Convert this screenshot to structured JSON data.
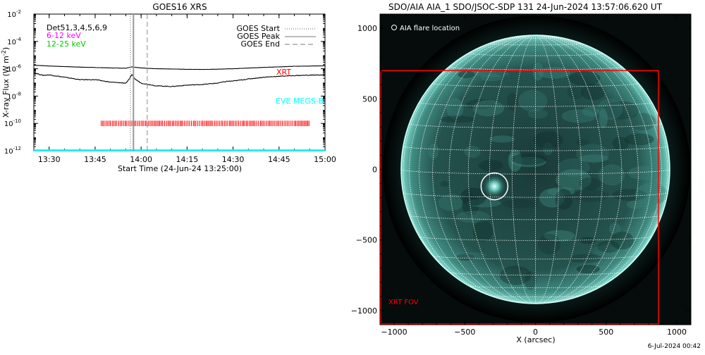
{
  "footer_timestamp": "6-Jul-2024 00:42",
  "chart_data": [
    {
      "type": "line",
      "title": "GOES16 XRS",
      "xlabel": "Start Time (24-Jun-24 13:25:00)",
      "ylabel": "X-ray Flux (W m",
      "ylabel_sup": "-2",
      "ylabel_close": ")",
      "xlim_minutes_after_13_25": [
        0,
        95
      ],
      "ylim_log10": [
        -12,
        -2
      ],
      "x_ticks": [
        "13:30",
        "13:45",
        "14:00",
        "14:15",
        "14:30",
        "14:45",
        "15:00"
      ],
      "y_ticks": [
        "10",
        "10",
        "10",
        "10",
        "10",
        "10"
      ],
      "y_tick_exponents": [
        "-12",
        "-10",
        "-8",
        "-6",
        "-4",
        "-2"
      ],
      "y_tick_values_log10": [
        -12,
        -10,
        -8,
        -6,
        -4,
        -2
      ],
      "x_tick_values": [
        "13:30",
        "13:45",
        "14:00",
        "14:15",
        "14:30",
        "14:45",
        "15:00"
      ],
      "labels": {
        "det": "Det51,3,4,5,6,9",
        "low": "6-12 keV",
        "high": "12-25 keV",
        "xrt": "XRT",
        "eve": "EVE MEGS-B"
      },
      "legend": {
        "placement": "top-right",
        "start": "GOES Start",
        "peak": "GOES Peak",
        "end": "GOES End"
      },
      "event_times": {
        "start": "13:56:30",
        "peak": "13:57:30",
        "end": "14:02:00"
      },
      "series": [
        {
          "name": "",
          "color": "#000000",
          "time": [
            "13:25",
            "13:30",
            "13:35",
            "13:40",
            "13:45",
            "13:50",
            "13:55",
            "13:57",
            "14:00",
            "14:05",
            "14:10",
            "14:15",
            "14:20",
            "14:25",
            "14:30",
            "14:35",
            "14:40",
            "14:45",
            "14:50",
            "14:55",
            "15:00"
          ],
          "log10_flux": [
            -5.74,
            -5.8,
            -5.84,
            -5.88,
            -5.91,
            -5.94,
            -5.96,
            -5.86,
            -5.94,
            -6.0,
            -6.02,
            -6.04,
            -6.05,
            -6.03,
            -6.0,
            -5.95,
            -5.9,
            -5.86,
            -5.82,
            -5.8,
            -5.78
          ]
        },
        {
          "name": "",
          "color": "#000000",
          "time": [
            "13:25",
            "13:28",
            "13:30",
            "13:35",
            "13:40",
            "13:45",
            "13:50",
            "13:55",
            "13:56",
            "13:57",
            "13:58",
            "14:00",
            "14:05",
            "14:10",
            "14:15",
            "14:20",
            "14:25",
            "14:28",
            "14:30",
            "14:35",
            "14:40",
            "14:45",
            "14:50",
            "14:55",
            "15:00"
          ],
          "log10_flux": [
            -6.3,
            -6.48,
            -6.45,
            -6.62,
            -6.8,
            -6.8,
            -6.98,
            -7.05,
            -6.8,
            -6.45,
            -6.75,
            -7.05,
            -7.25,
            -7.3,
            -7.2,
            -7.15,
            -7.05,
            -6.92,
            -6.9,
            -6.75,
            -6.62,
            -6.55,
            -6.5,
            -6.47,
            -6.45
          ]
        },
        {
          "name": "",
          "color": "#00ffff",
          "time": [
            "13:25",
            "15:00"
          ],
          "log10_flux": [
            -11.96,
            -11.96
          ]
        }
      ],
      "xrt_observations": {
        "color": "#ff0000",
        "from": "13:47",
        "to": "14:55",
        "log10_flux_range": [
          -10.2,
          -9.8
        ]
      }
    },
    {
      "type": "image",
      "title": "SDO/AIA AIA_1 SDO/JSOC-SDP 131 24-Jun-2024 13:57:06.620 UT",
      "xlabel": "X (arcsec)",
      "ylabel": "",
      "xlim": [
        -1100,
        1100
      ],
      "ylim": [
        -1100,
        1100
      ],
      "x_ticks": [
        -1000,
        -500,
        0,
        500,
        1000
      ],
      "y_ticks": [
        1000,
        500,
        0,
        -500,
        -1000
      ],
      "x_tick_labels": [
        "−1000",
        "−500",
        "0",
        "500",
        "1000"
      ],
      "y_tick_labels": [
        "1000",
        "500",
        "0",
        "−500",
        "−1000"
      ],
      "solar_radius_arcsec": 950,
      "grid_spacing_deg": 10,
      "legend_text": "AIA flare location",
      "flare_location_arcsec": [
        -290,
        -120
      ],
      "flare_circle_radius_arcsec": 95,
      "xrt_fov_label": "XRT FOV",
      "xrt_fov_arcsec": {
        "x": [
          -1100,
          870
        ],
        "y": [
          -1100,
          700
        ]
      },
      "colors": {
        "disk": "#1d4a46",
        "limb": "#bffff5",
        "grid": "#ffffff",
        "fov": "#ff0000"
      }
    }
  ]
}
